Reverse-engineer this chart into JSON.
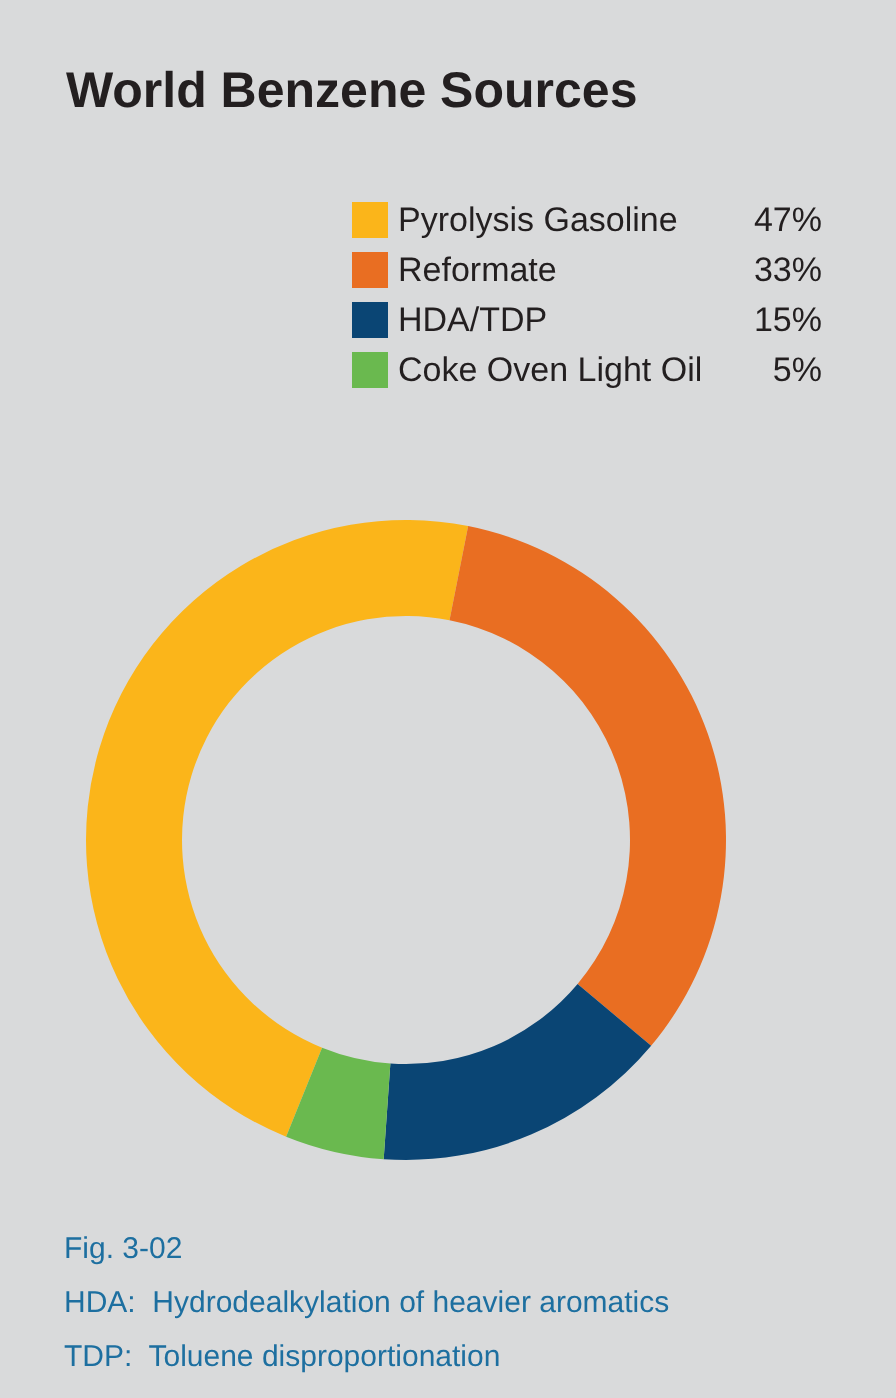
{
  "chart_data": {
    "type": "donut",
    "title": "World Benzene Sources",
    "categories": [
      "Pyrolysis Gasoline",
      "Reformate",
      "HDA/TDP",
      "Coke Oven Light Oil"
    ],
    "values": [
      47,
      33,
      15,
      5
    ],
    "value_labels": [
      "47%",
      "33%",
      "15%",
      "5%"
    ],
    "colors": [
      "#fbb51a",
      "#e96e22",
      "#0a4574",
      "#6ab94f"
    ],
    "legend": "top right",
    "annotations": [
      "Fig. 3-02",
      "HDA:  Hydrodealkylation of heavier aromatics",
      "TDP:  Toluene disproportionation"
    ]
  }
}
